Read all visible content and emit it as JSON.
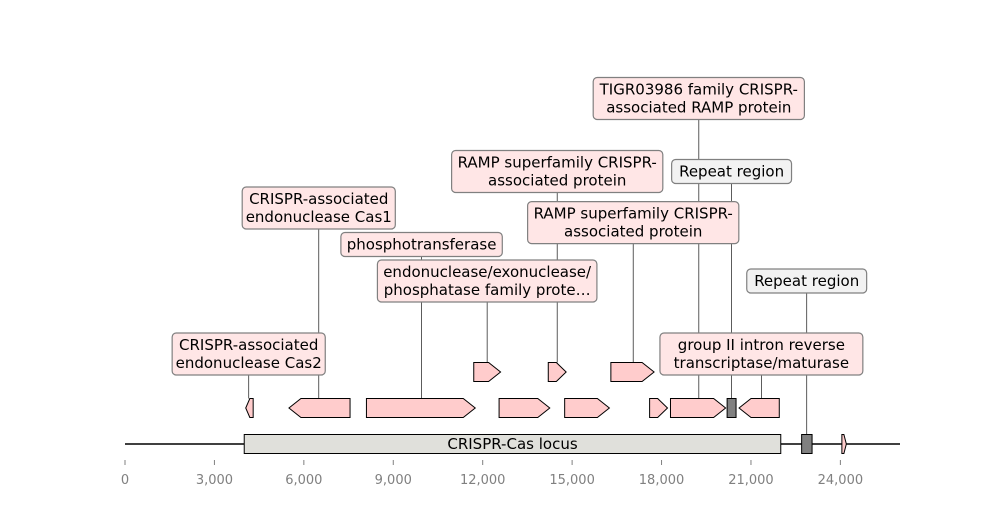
{
  "axis": {
    "min": 0,
    "max": 26000,
    "ticks": [
      0,
      3000,
      6000,
      9000,
      12000,
      15000,
      18000,
      21000,
      24000
    ],
    "tick_labels": [
      "0",
      "3,000",
      "6,000",
      "9,000",
      "12,000",
      "15,000",
      "18,000",
      "21,000",
      "24,000"
    ],
    "backbone": [
      0,
      26000
    ]
  },
  "colors": {
    "cds": "#ffcccc",
    "cds_label_bg": "#ffe6e6",
    "repeat": "#808080",
    "repeat_label_bg": "#f2f2f2",
    "locus": "#e0e0db",
    "outline": "#000000",
    "label_border": "#808080",
    "tick": "#808080"
  },
  "features": [
    {
      "start": 4050,
      "end": 4300,
      "strand": -1,
      "level": 1,
      "type": "cds"
    },
    {
      "start": 5500,
      "end": 7550,
      "strand": -1,
      "level": 1,
      "type": "cds"
    },
    {
      "start": 8100,
      "end": 11750,
      "strand": 1,
      "level": 1,
      "type": "cds"
    },
    {
      "start": 11700,
      "end": 12600,
      "strand": 1,
      "level": 2,
      "type": "cds"
    },
    {
      "start": 12550,
      "end": 14250,
      "strand": 1,
      "level": 1,
      "type": "cds"
    },
    {
      "start": 14200,
      "end": 14800,
      "strand": 1,
      "level": 2,
      "type": "cds"
    },
    {
      "start": 14750,
      "end": 16250,
      "strand": 1,
      "level": 1,
      "type": "cds"
    },
    {
      "start": 16300,
      "end": 17750,
      "strand": 1,
      "level": 2,
      "type": "cds"
    },
    {
      "start": 17600,
      "end": 18200,
      "strand": 1,
      "level": 1,
      "type": "cds"
    },
    {
      "start": 18300,
      "end": 20150,
      "strand": 1,
      "level": 1,
      "type": "cds"
    },
    {
      "start": 20200,
      "end": 20500,
      "strand": 0,
      "level": 1,
      "type": "repeat"
    },
    {
      "start": 20600,
      "end": 21950,
      "strand": -1,
      "level": 1,
      "type": "cds"
    },
    {
      "start": 22700,
      "end": 23050,
      "strand": 0,
      "level": 0,
      "type": "repeat"
    },
    {
      "start": 24050,
      "end": 24200,
      "strand": 1,
      "level": 0,
      "type": "cds"
    }
  ],
  "locus": {
    "start": 4000,
    "end": 22000,
    "label": "CRISPR-Cas locus"
  },
  "annotations": [
    {
      "lines": [
        "CRISPR-associated",
        "endonuclease Cas2"
      ],
      "anchor": 4150,
      "center": 4150,
      "row": 1,
      "anchor_level": 1,
      "type": "cds"
    },
    {
      "lines": [
        "CRISPR-associated",
        "endonuclease Cas1"
      ],
      "anchor": 6500,
      "center": 6500,
      "row": 5,
      "anchor_level": 1,
      "type": "cds"
    },
    {
      "lines": [
        "phosphotransferase"
      ],
      "anchor": 9950,
      "center": 9950,
      "row": 4,
      "anchor_level": 1,
      "type": "cds"
    },
    {
      "lines": [
        "endonuclease/exonuclease/",
        "phosphatase family prote…"
      ],
      "anchor": 12150,
      "center": 12150,
      "row": 3,
      "anchor_level": 2,
      "type": "cds"
    },
    {
      "lines": [
        "RAMP superfamily CRISPR-",
        "associated protein"
      ],
      "anchor": 14500,
      "center": 14500,
      "row": 6,
      "anchor_level": 2,
      "type": "cds"
    },
    {
      "lines": [
        "RAMP superfamily CRISPR-",
        "associated protein"
      ],
      "anchor": 17050,
      "center": 17050,
      "row": 4.6,
      "anchor_level": 2,
      "type": "cds"
    },
    {
      "lines": [
        "TIGR03986 family CRISPR-",
        "associated RAMP protein"
      ],
      "anchor": 19250,
      "center": 19250,
      "row": 8,
      "anchor_level": 1,
      "type": "cds"
    },
    {
      "lines": [
        "Repeat region"
      ],
      "anchor": 20350,
      "center": 20350,
      "row": 6,
      "anchor_level": 1,
      "type": "repeat"
    },
    {
      "lines": [
        "group II intron reverse",
        "transcriptase/maturase"
      ],
      "anchor": 21350,
      "center": 21350,
      "row": 1,
      "anchor_level": 1,
      "type": "cds"
    },
    {
      "lines": [
        "Repeat region"
      ],
      "anchor": 22870,
      "center": 22870,
      "row": 3,
      "anchor_level": 0,
      "type": "repeat"
    }
  ]
}
